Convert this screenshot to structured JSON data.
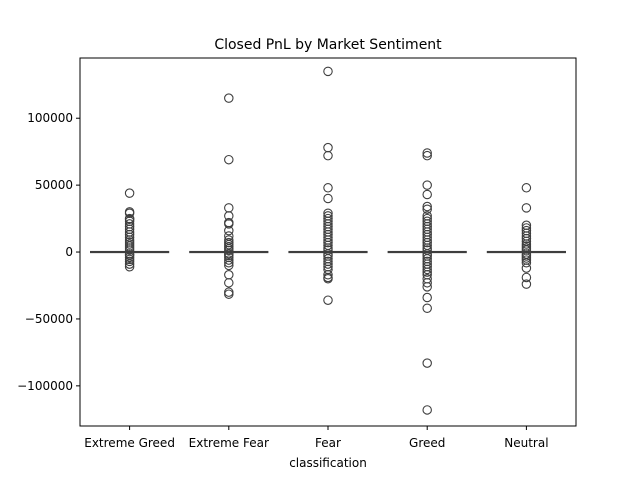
{
  "chart_data": {
    "type": "box",
    "title": "Closed PnL by Market Sentiment",
    "xlabel": "classification",
    "ylabel": "",
    "ylim": [
      -130000,
      145000
    ],
    "y_ticks": [
      -100000,
      -50000,
      0,
      50000,
      100000
    ],
    "y_tick_labels": [
      "−100000",
      "−50000",
      "0",
      "50000",
      "100000"
    ],
    "grid": false,
    "legend": "none",
    "colors": {
      "box_fill": "#ffffff",
      "stroke": "#3f3f3f",
      "axis": "#000000"
    },
    "categories": [
      "Extreme Greed",
      "Extreme Fear",
      "Fear",
      "Greed",
      "Neutral"
    ],
    "series": [
      {
        "category": "Extreme Greed",
        "q1": 0,
        "median": 0,
        "q3": 0,
        "whisker_low": 0,
        "whisker_high": 0,
        "outliers": [
          44000,
          30000,
          29000,
          25000,
          24500,
          23000,
          21000,
          19000,
          17000,
          15000,
          13000,
          11000,
          9000,
          7500,
          6000,
          4500,
          3000,
          1500,
          -1500,
          -2500,
          -4000,
          -5500,
          -7000,
          -9000,
          -11000
        ]
      },
      {
        "category": "Extreme Fear",
        "q1": 0,
        "median": 0,
        "q3": 0,
        "whisker_low": 0,
        "whisker_high": 0,
        "outliers": [
          115000,
          69000,
          33000,
          27000,
          22000,
          21000,
          16000,
          12000,
          9000,
          7000,
          5500,
          4000,
          2500,
          1200,
          -1200,
          -2500,
          -4000,
          -6000,
          -8000,
          -10000,
          -17000,
          -23000,
          -30000,
          -31500
        ]
      },
      {
        "category": "Fear",
        "q1": 0,
        "median": 0,
        "q3": 0,
        "whisker_low": 0,
        "whisker_high": 0,
        "outliers": [
          135000,
          78000,
          72000,
          48000,
          40000,
          29000,
          27000,
          25000,
          23000,
          21000,
          19000,
          17000,
          15000,
          13000,
          11000,
          9000,
          7000,
          5000,
          3000,
          1500,
          -1500,
          -3000,
          -5000,
          -7000,
          -9000,
          -11000,
          -13000,
          -17000,
          -19000,
          -20000,
          -36000
        ]
      },
      {
        "category": "Greed",
        "q1": 0,
        "median": 0,
        "q3": 0,
        "whisker_low": 0,
        "whisker_high": 0,
        "outliers": [
          74000,
          72000,
          50000,
          43000,
          34000,
          32000,
          27000,
          25000,
          23000,
          21000,
          19000,
          17000,
          15000,
          13000,
          11000,
          9000,
          7000,
          5000,
          3000,
          1500,
          -1500,
          -3000,
          -5000,
          -7000,
          -9000,
          -11000,
          -13000,
          -15000,
          -17000,
          -20000,
          -23000,
          -26000,
          -34000,
          -42000,
          -83000,
          -118000
        ]
      },
      {
        "category": "Neutral",
        "q1": 0,
        "median": 0,
        "q3": 0,
        "whisker_low": 0,
        "whisker_high": 0,
        "outliers": [
          48000,
          33000,
          20000,
          18000,
          16000,
          14000,
          12000,
          10000,
          8000,
          6000,
          4500,
          3000,
          1500,
          -1500,
          -3000,
          -4500,
          -6000,
          -8000,
          -12000,
          -19000,
          -24000
        ]
      }
    ]
  }
}
